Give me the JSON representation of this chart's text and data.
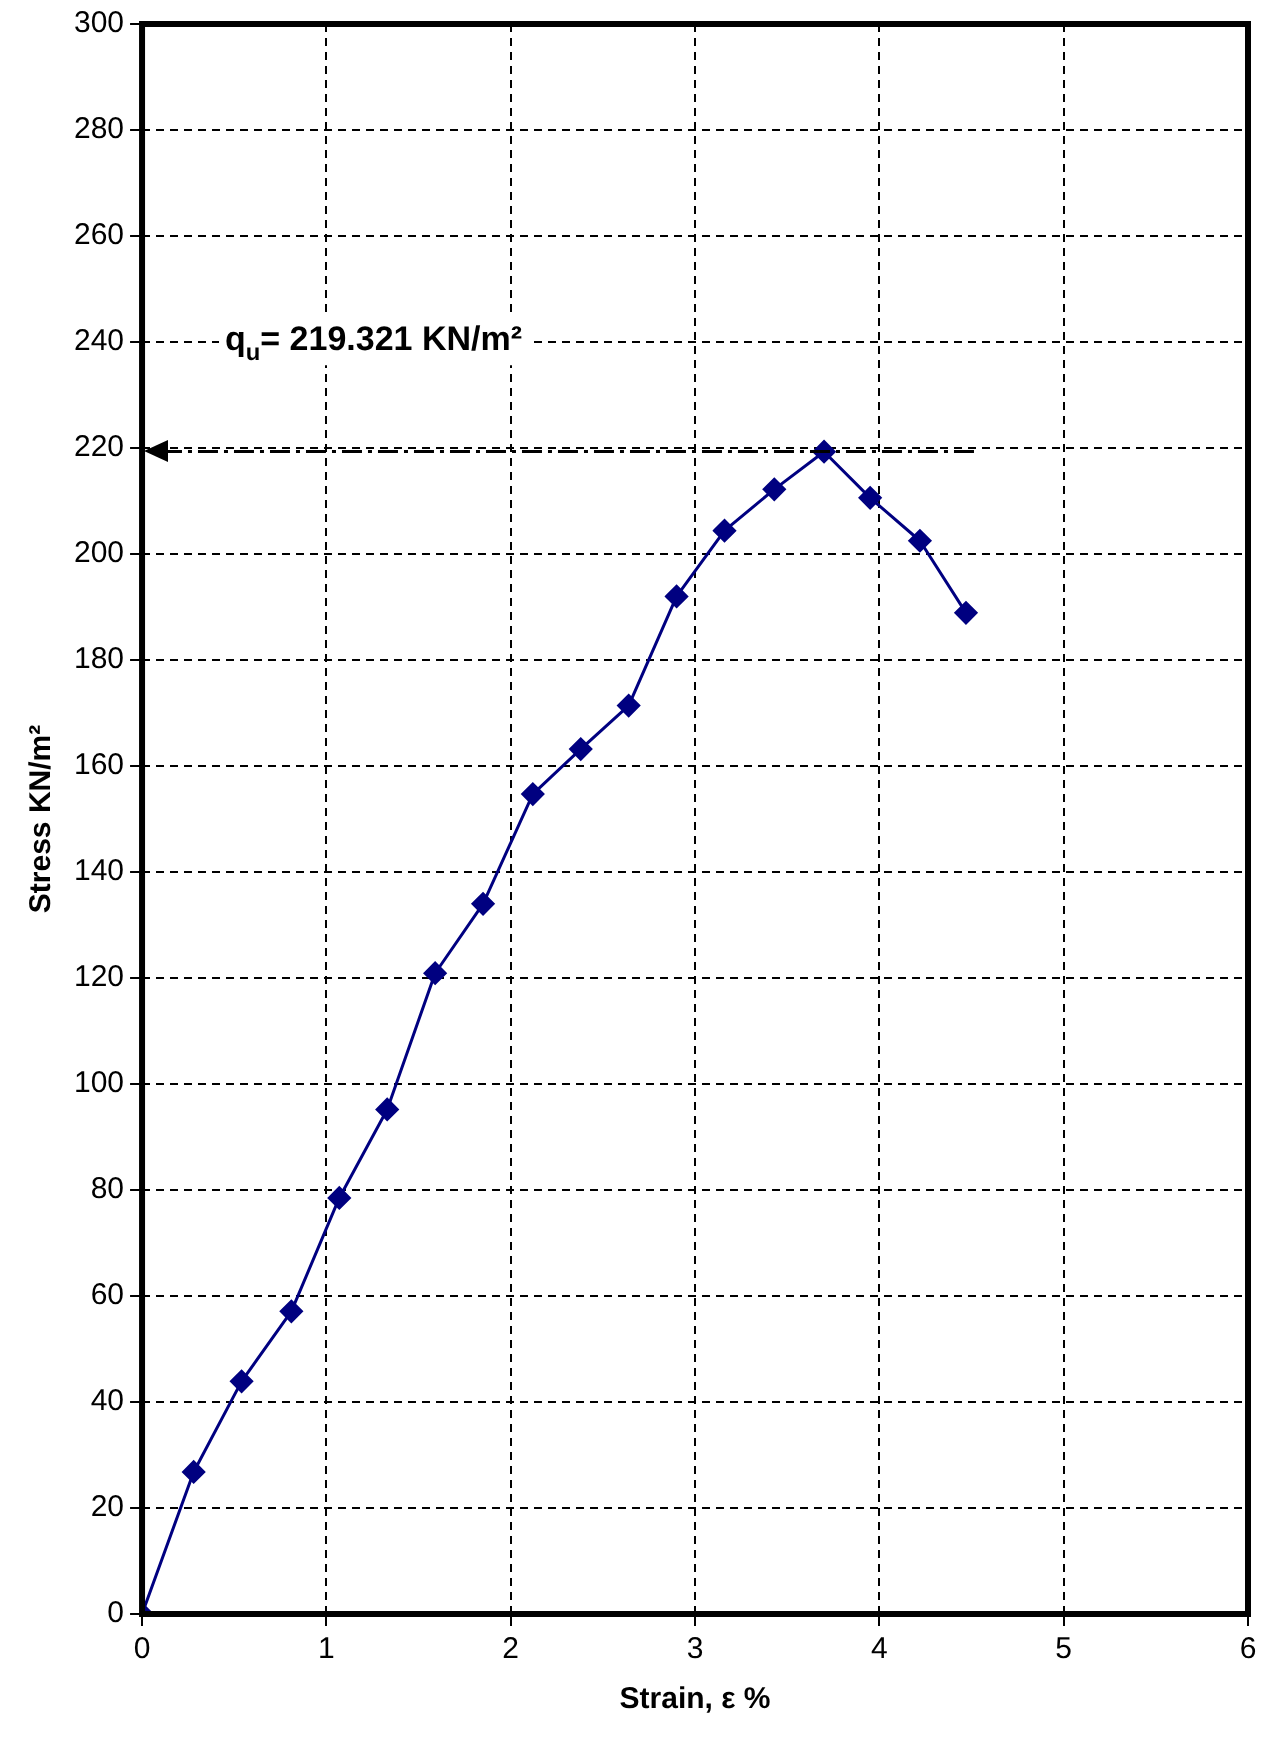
{
  "chart_data": {
    "type": "line",
    "xlabel": "Strain, ε %",
    "ylabel": "Stress KN/m²",
    "x": [
      0,
      0.28,
      0.54,
      0.81,
      1.07,
      1.33,
      1.59,
      1.85,
      2.12,
      2.38,
      2.64,
      2.9,
      3.16,
      3.43,
      3.7,
      3.95,
      4.22,
      4.47
    ],
    "series": [
      {
        "color": "#000080",
        "values": [
          0,
          26.8,
          43.9,
          57.1,
          78.5,
          95.2,
          120.9,
          134,
          154.7,
          163.2,
          171.4,
          192,
          204.4,
          212.2,
          219.3,
          210.6,
          202.5,
          188.9
        ]
      }
    ],
    "xlim": [
      0,
      6
    ],
    "xticks": [
      0,
      1,
      2,
      3,
      4,
      5,
      6
    ],
    "ylim": [
      0,
      300
    ],
    "yticks": [
      0,
      20,
      40,
      60,
      80,
      100,
      120,
      140,
      160,
      180,
      200,
      220,
      240,
      260,
      280,
      300
    ],
    "ref_lines": [
      {
        "axis": "y",
        "value": 219.321,
        "color": "#000000",
        "line_style": "dashed"
      }
    ],
    "annotations": [
      "q$_{u}$= 219.321 KN/m²"
    ],
    "grid": true,
    "legend": false,
    "marker": "diamond",
    "line_style": "solid"
  }
}
